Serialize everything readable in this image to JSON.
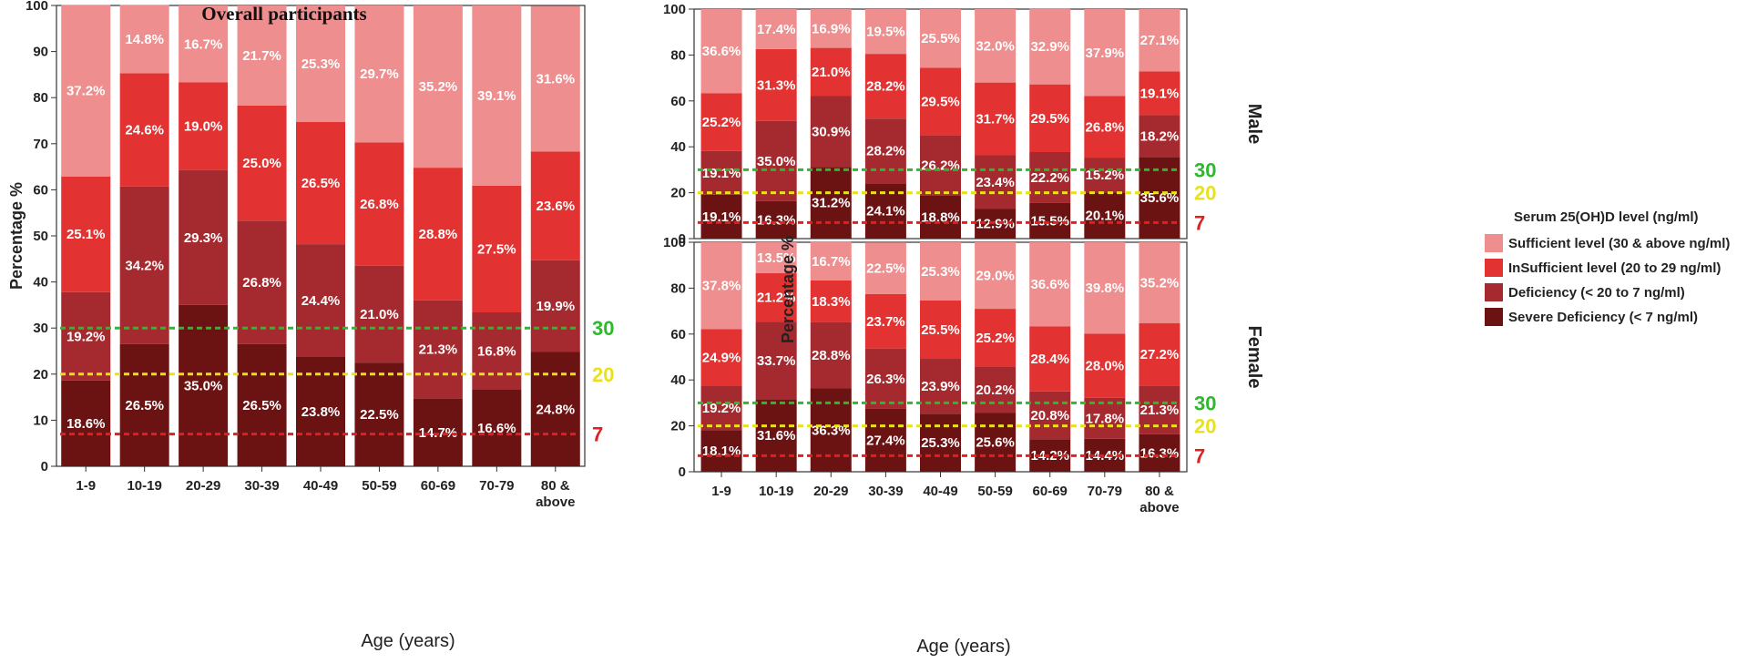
{
  "chart_data": [
    {
      "type": "bar",
      "id": "overall",
      "title": "Overall participants",
      "xlabel": "Age (years)",
      "ylabel": "Percentage %",
      "ylim": [
        0,
        100
      ],
      "yticks": [
        0,
        10,
        20,
        30,
        40,
        50,
        60,
        70,
        80,
        90,
        100
      ],
      "categories": [
        "1-9",
        "10-19",
        "20-29",
        "30-39",
        "40-49",
        "50-59",
        "60-69",
        "70-79",
        "80 & above"
      ],
      "series": [
        {
          "name": "Severe Deficiency (< 7 ng/ml)",
          "values": [
            18.6,
            26.5,
            35.0,
            26.5,
            23.8,
            22.5,
            14.7,
            16.6,
            24.8
          ],
          "labels": [
            "18.6%",
            "26.5%",
            "35.0%",
            "26.5%",
            "23.8%",
            "22.5%",
            "14.7%",
            "16.6%",
            "24.8%"
          ]
        },
        {
          "name": "Deficiency (< 20 to 7 ng/ml)",
          "values": [
            19.2,
            34.2,
            29.3,
            26.8,
            24.4,
            21.0,
            21.3,
            16.8,
            19.9
          ],
          "labels": [
            "19.2%",
            "34.2%",
            "29.3%",
            "26.8%",
            "24.4%",
            "21.0%",
            "21.3%",
            "16.8%",
            "19.9%"
          ]
        },
        {
          "name": "InSufficient level (20 to 29 ng/ml)",
          "values": [
            25.1,
            24.6,
            19.0,
            25.0,
            26.5,
            26.8,
            28.8,
            27.5,
            23.6
          ],
          "labels": [
            "25.1%",
            "24.6%",
            "19.0%",
            "25.0%",
            "26.5%",
            "26.8%",
            "28.8%",
            "27.5%",
            "23.6%"
          ]
        },
        {
          "name": "Sufficient level (30 & above ng/ml)",
          "values": [
            37.2,
            14.8,
            16.7,
            21.7,
            25.3,
            29.7,
            35.2,
            39.1,
            31.6
          ],
          "labels": [
            "37.2%",
            "14.8%",
            "16.7%",
            "21.7%",
            "25.3%",
            "29.7%",
            "35.2%",
            "39.1%",
            "31.6%"
          ]
        }
      ],
      "reference_lines": [
        {
          "value": 30,
          "label": "30",
          "color": "#2db82d"
        },
        {
          "value": 20,
          "label": "20",
          "color": "#e8e21a"
        },
        {
          "value": 7,
          "label": "7",
          "color": "#e02020"
        }
      ]
    },
    {
      "type": "bar",
      "id": "male",
      "facet_label": "Male",
      "ylabel": "Percentage %",
      "ylim": [
        0,
        100
      ],
      "yticks": [
        0,
        20,
        40,
        60,
        80,
        100
      ],
      "categories": [
        "1-9",
        "10-19",
        "20-29",
        "30-39",
        "40-49",
        "50-59",
        "60-69",
        "70-79",
        "80 & above"
      ],
      "series": [
        {
          "name": "Severe Deficiency (< 7 ng/ml)",
          "values": [
            19.1,
            16.3,
            31.2,
            24.1,
            18.8,
            12.9,
            15.5,
            20.1,
            35.6
          ],
          "labels": [
            "19.1%",
            "16.3%",
            "31.2%",
            "24.1%",
            "18.8%",
            "12.9%",
            "15.5%",
            "20.1%",
            "35.6%"
          ]
        },
        {
          "name": "Deficiency (< 20 to 7 ng/ml)",
          "values": [
            19.1,
            35.0,
            30.9,
            28.2,
            26.2,
            23.4,
            22.2,
            15.2,
            18.2
          ],
          "labels": [
            "19.1%",
            "35.0%",
            "30.9%",
            "28.2%",
            "26.2%",
            "23.4%",
            "22.2%",
            "15.2%",
            "18.2%"
          ]
        },
        {
          "name": "InSufficient level (20 to 29 ng/ml)",
          "values": [
            25.2,
            31.3,
            21.0,
            28.2,
            29.5,
            31.7,
            29.5,
            26.8,
            19.1
          ],
          "labels": [
            "25.2%",
            "31.3%",
            "21.0%",
            "28.2%",
            "29.5%",
            "31.7%",
            "29.5%",
            "26.8%",
            "19.1%"
          ]
        },
        {
          "name": "Sufficient level (30 & above ng/ml)",
          "values": [
            36.6,
            17.4,
            16.9,
            19.5,
            25.5,
            32.0,
            32.9,
            37.9,
            27.1
          ],
          "labels": [
            "36.6%",
            "17.4%",
            "16.9%",
            "19.5%",
            "25.5%",
            "32.0%",
            "32.9%",
            "37.9%",
            "27.1%"
          ]
        }
      ],
      "reference_lines": [
        {
          "value": 30,
          "label": "30",
          "color": "#2db82d"
        },
        {
          "value": 20,
          "label": "20",
          "color": "#e8e21a"
        },
        {
          "value": 7,
          "label": "7",
          "color": "#e02020"
        }
      ]
    },
    {
      "type": "bar",
      "id": "female",
      "facet_label": "Female",
      "xlabel": "Age (years)",
      "ylim": [
        0,
        100
      ],
      "yticks": [
        0,
        20,
        40,
        60,
        80,
        100
      ],
      "categories": [
        "1-9",
        "10-19",
        "20-29",
        "30-39",
        "40-49",
        "50-59",
        "60-69",
        "70-79",
        "80 & above"
      ],
      "series": [
        {
          "name": "Severe Deficiency (< 7 ng/ml)",
          "values": [
            18.1,
            31.6,
            36.3,
            27.4,
            25.3,
            25.6,
            14.2,
            14.4,
            16.3
          ],
          "labels": [
            "18.1%",
            "31.6%",
            "36.3%",
            "27.4%",
            "25.3%",
            "25.6%",
            "14.2%",
            "14.4%",
            "16.3%"
          ]
        },
        {
          "name": "Deficiency (< 20 to 7 ng/ml)",
          "values": [
            19.2,
            33.7,
            28.8,
            26.3,
            23.9,
            20.2,
            20.8,
            17.8,
            21.3
          ],
          "labels": [
            "19.2%",
            "33.7%",
            "28.8%",
            "26.3%",
            "23.9%",
            "20.2%",
            "20.8%",
            "17.8%",
            "21.3%"
          ]
        },
        {
          "name": "InSufficient level (20 to 29 ng/ml)",
          "values": [
            24.9,
            21.2,
            18.3,
            23.7,
            25.5,
            25.2,
            28.4,
            28.0,
            27.2
          ],
          "labels": [
            "24.9%",
            "21.2%",
            "18.3%",
            "23.7%",
            "25.5%",
            "25.2%",
            "28.4%",
            "28.0%",
            "27.2%"
          ]
        },
        {
          "name": "Sufficient level (30 & above ng/ml)",
          "values": [
            37.8,
            13.5,
            16.7,
            22.5,
            25.3,
            29.0,
            36.6,
            39.8,
            35.2
          ],
          "labels": [
            "37.8%",
            "13.5%",
            "16.7%",
            "22.5%",
            "25.3%",
            "29.0%",
            "36.6%",
            "39.8%",
            "35.2%"
          ]
        }
      ],
      "reference_lines": [
        {
          "value": 30,
          "label": "30",
          "color": "#2db82d"
        },
        {
          "value": 20,
          "label": "20",
          "color": "#e8e21a"
        },
        {
          "value": 7,
          "label": "7",
          "color": "#e02020"
        }
      ]
    }
  ],
  "legend": {
    "title": "Serum 25(OH)D level (ng/ml)",
    "items": [
      {
        "label": "Sufficient level (30 & above ng/ml)",
        "color": "#ee8e8e"
      },
      {
        "label": "InSufficient level (20 to 29 ng/ml)",
        "color": "#e23232"
      },
      {
        "label": "Deficiency (< 20 to 7 ng/ml)",
        "color": "#a52a2f"
      },
      {
        "label": "Severe Deficiency (< 7 ng/ml)",
        "color": "#6b1212"
      }
    ]
  },
  "series_colors": [
    "#6b1212",
    "#a52a2f",
    "#e23232",
    "#ee8e8e"
  ]
}
